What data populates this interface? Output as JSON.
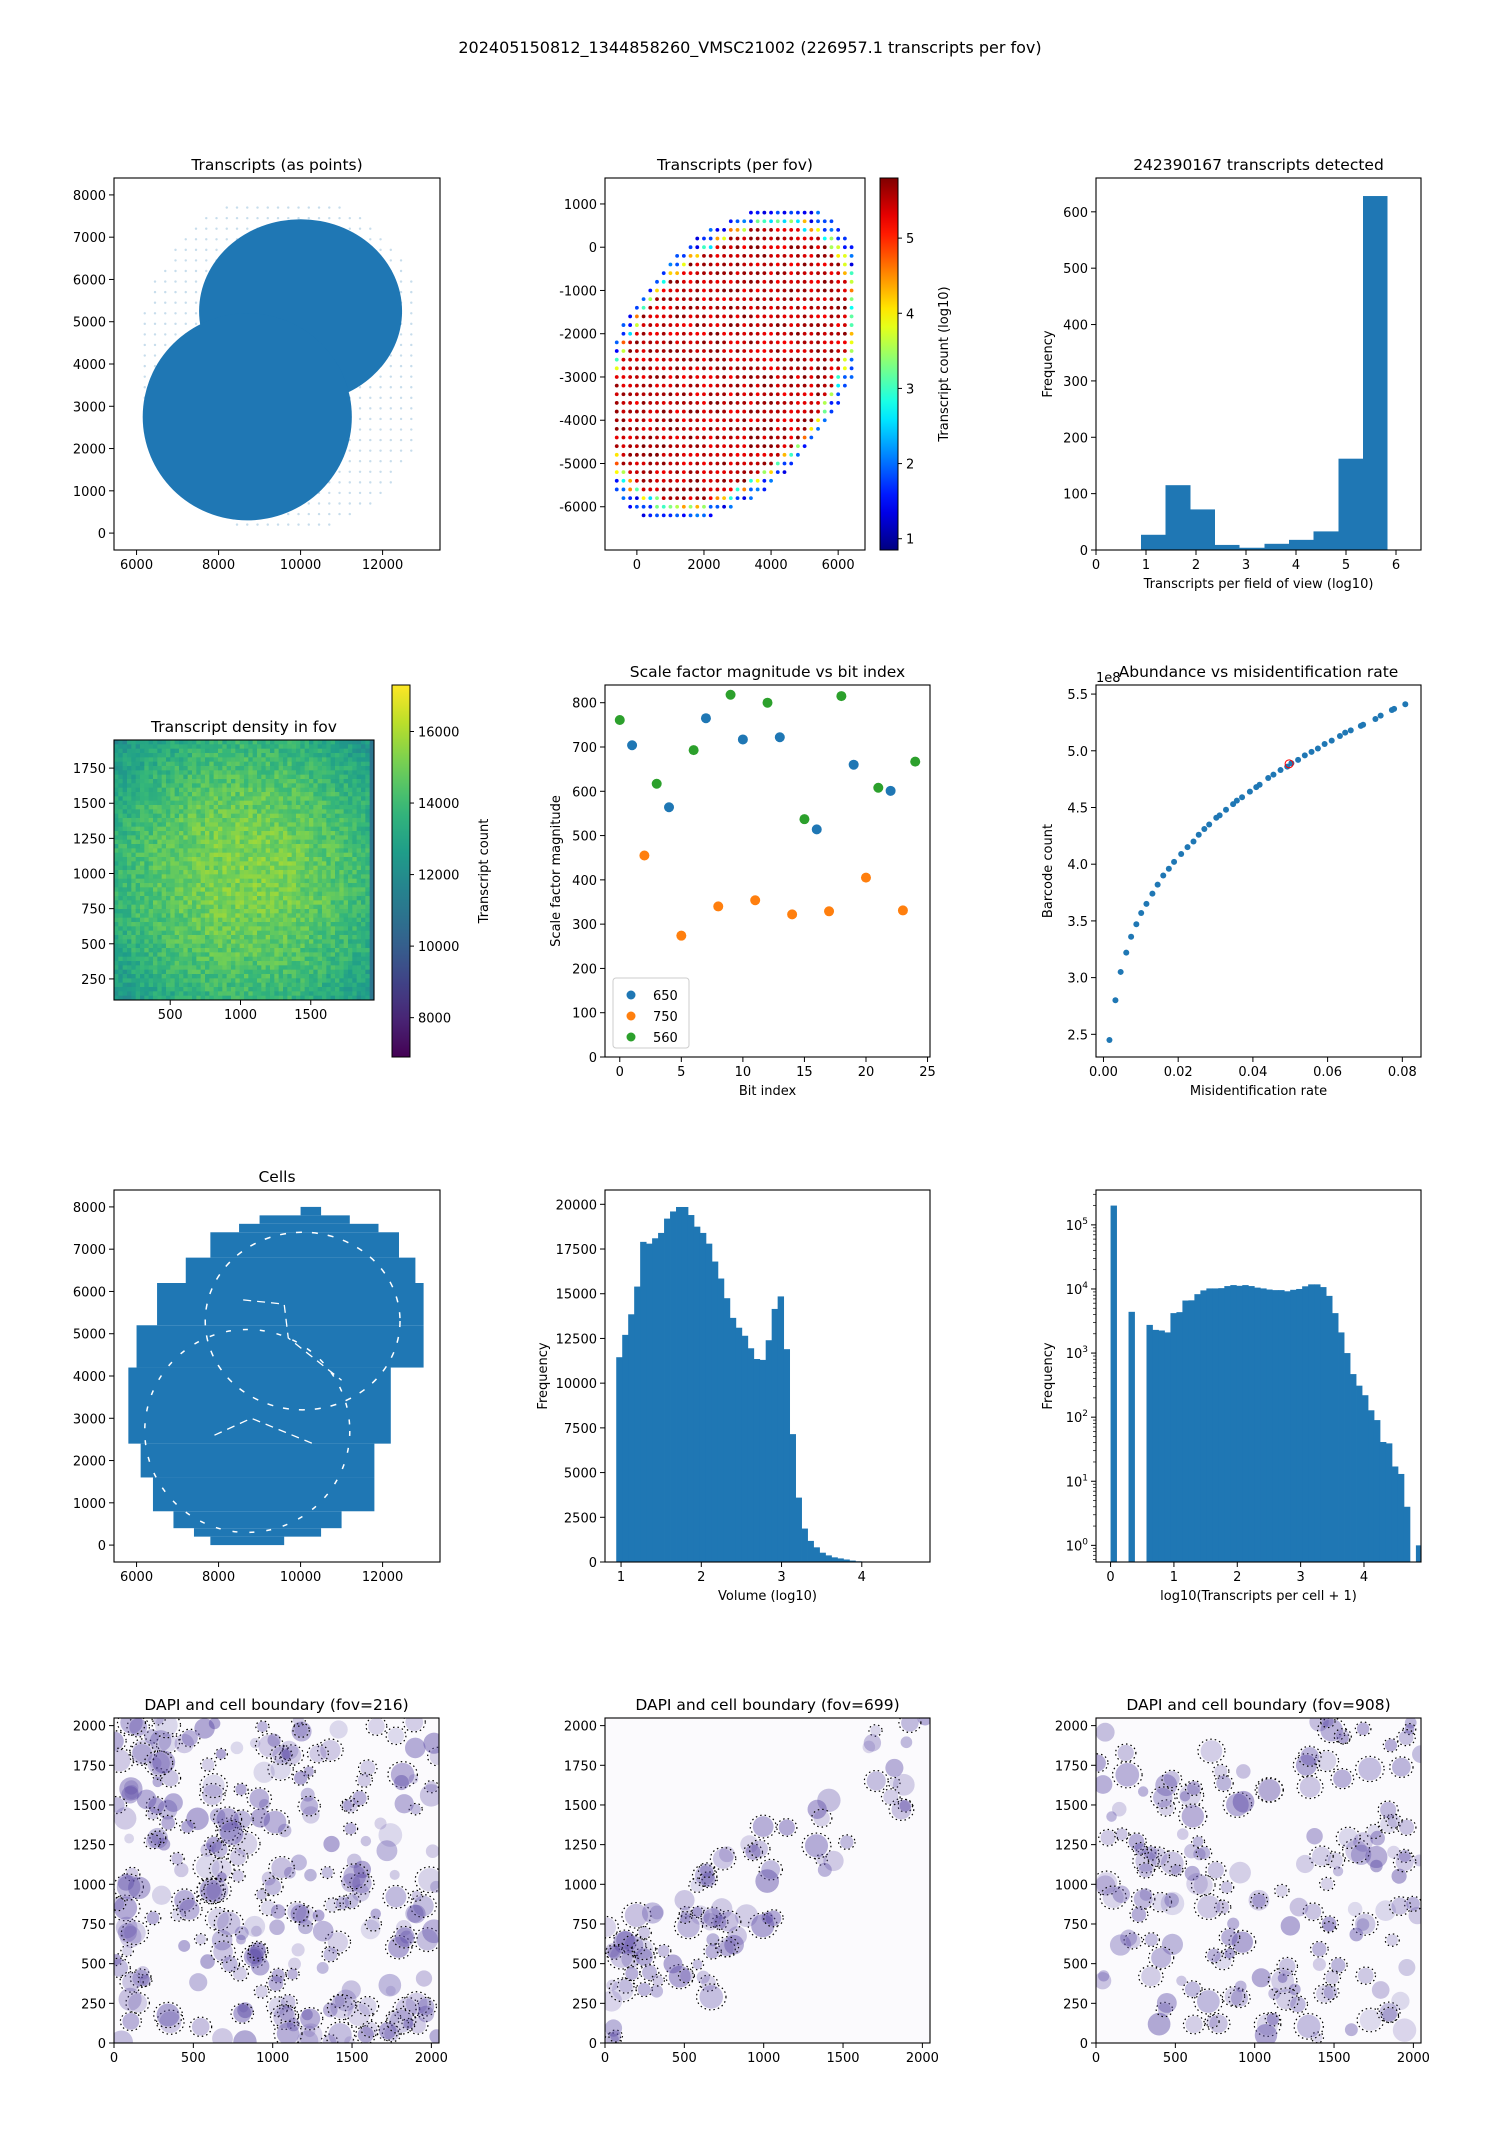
{
  "suptitle": "202405150812_1344858260_VMSC21002 (226957.1 transcripts per fov)",
  "colors": {
    "tab_blue": "#1f77b4",
    "tab_orange": "#ff7f0e",
    "tab_green": "#2ca02c",
    "dapi": "#5b4aa6"
  },
  "chart_data": [
    {
      "id": "transcripts-points",
      "type": "scatter",
      "title": "Transcripts (as points)",
      "xlabel": "",
      "ylabel": "",
      "xlim": [
        5450,
        13400
      ],
      "ylim": [
        -400,
        8400
      ],
      "xticks": [
        6000,
        8000,
        10000,
        12000
      ],
      "yticks": [
        0,
        1000,
        2000,
        3000,
        4000,
        5000,
        6000,
        7000,
        8000
      ],
      "description": "Dense blue point cloud forming two overlapping roughly circular tissue sections with faint grid of sparse points around edges",
      "color": "#1f77b4"
    },
    {
      "id": "transcripts-per-fov",
      "type": "scatter",
      "title": "Transcripts (per fov)",
      "xlim": [
        -950,
        6800
      ],
      "ylim": [
        -7000,
        1600
      ],
      "xticks": [
        0,
        2000,
        4000,
        6000
      ],
      "yticks": [
        -6000,
        -5000,
        -4000,
        -3000,
        -2000,
        -1000,
        0,
        1000
      ],
      "grid_spacing": 200,
      "colorbar": {
        "label": "Transcript count (log10)",
        "cmap": "jet",
        "range": [
          0.85,
          5.8
        ],
        "ticks": [
          1,
          2,
          3,
          4,
          5
        ]
      },
      "description": "Grid of fov centers colored by log10 transcript count; interior ~5.5 (red), boundary ~1.5-2 (blue)"
    },
    {
      "id": "transcripts-per-fov-hist",
      "type": "bar",
      "title": "242390167 transcripts detected",
      "xlabel": "Transcripts per field of view (log10)",
      "ylabel": "Frequency",
      "xlim": [
        0,
        6.5
      ],
      "ylim": [
        0,
        660
      ],
      "xticks": [
        0,
        1,
        2,
        3,
        4,
        5,
        6
      ],
      "yticks": [
        0,
        100,
        200,
        300,
        400,
        500,
        600
      ],
      "bin_edges": [
        0.9,
        1.39,
        1.89,
        2.38,
        2.87,
        3.37,
        3.86,
        4.35,
        4.85,
        5.34,
        5.83
      ],
      "values": [
        27,
        115,
        72,
        9,
        4,
        11,
        18,
        33,
        162,
        628
      ]
    },
    {
      "id": "transcript-density",
      "type": "heatmap",
      "title": "Transcript density in fov",
      "xlim": [
        100,
        1950
      ],
      "ylim": [
        100,
        1950
      ],
      "xticks": [
        500,
        1000,
        1500
      ],
      "yticks": [
        250,
        500,
        750,
        1000,
        1250,
        1500,
        1750
      ],
      "colorbar": {
        "label": "Transcript count",
        "cmap": "viridis",
        "range": [
          6900,
          17300
        ],
        "ticks": [
          8000,
          10000,
          12000,
          14000,
          16000
        ]
      },
      "description": "Mostly 13000-16500 counts, brighter near center, darker at edges"
    },
    {
      "id": "scale-factor",
      "type": "scatter",
      "title": "Scale factor magnitude vs bit index",
      "xlabel": "Bit index",
      "ylabel": "Scale factor magnitude",
      "xlim": [
        -1.2,
        25.2
      ],
      "ylim": [
        0,
        840
      ],
      "xticks": [
        0,
        5,
        10,
        15,
        20,
        25
      ],
      "yticks": [
        0,
        100,
        200,
        300,
        400,
        500,
        600,
        700,
        800
      ],
      "legend": "lower-left",
      "series": [
        {
          "name": "650",
          "color": "#1f77b4",
          "x": [
            1,
            4,
            7,
            10,
            13,
            16,
            19,
            22
          ],
          "y": [
            704,
            564,
            765,
            717,
            722,
            514,
            660,
            601
          ]
        },
        {
          "name": "750",
          "color": "#ff7f0e",
          "x": [
            2,
            5,
            8,
            11,
            14,
            17,
            20,
            23
          ],
          "y": [
            455,
            274,
            340,
            354,
            322,
            329,
            405,
            331
          ]
        },
        {
          "name": "560",
          "color": "#2ca02c",
          "x": [
            0,
            3,
            6,
            9,
            12,
            15,
            18,
            21,
            24
          ],
          "y": [
            761,
            617,
            693,
            818,
            800,
            537,
            815,
            608,
            667
          ]
        }
      ]
    },
    {
      "id": "abundance-vs-misid",
      "type": "scatter",
      "title": "Abundance vs misidentification rate",
      "xlabel": "Misidentification rate",
      "ylabel": "Barcode count",
      "offset_text": "1e8",
      "xlim": [
        -0.002,
        0.085
      ],
      "ylim": [
        2.3,
        5.58
      ],
      "xticks": [
        0.0,
        0.02,
        0.04,
        0.06,
        0.08
      ],
      "xticklabels": [
        "0.00",
        "0.02",
        "0.04",
        "0.06",
        "0.08"
      ],
      "yticks": [
        2.5,
        3.0,
        3.5,
        4.0,
        4.5,
        5.0,
        5.5
      ],
      "yticklabels": [
        "2.5",
        "3.0",
        "3.5",
        "4.0",
        "4.5",
        "5.0",
        "5.5"
      ],
      "highlight": {
        "x": 0.0497,
        "y": 4.885,
        "color": "#ff0000"
      },
      "x": [
        0.0016,
        0.0032,
        0.0046,
        0.0061,
        0.0074,
        0.0088,
        0.0101,
        0.0115,
        0.0131,
        0.0145,
        0.016,
        0.0175,
        0.0189,
        0.0208,
        0.0225,
        0.0241,
        0.0255,
        0.027,
        0.0283,
        0.0302,
        0.0311,
        0.0328,
        0.0347,
        0.0357,
        0.0371,
        0.0392,
        0.0409,
        0.0418,
        0.0441,
        0.0455,
        0.0474,
        0.0492,
        0.0503,
        0.0521,
        0.0539,
        0.0557,
        0.0574,
        0.0592,
        0.0611,
        0.0633,
        0.0647,
        0.0662,
        0.0689,
        0.0695,
        0.0728,
        0.0742,
        0.0772,
        0.0778,
        0.0808
      ],
      "y": [
        2.45,
        2.8,
        3.05,
        3.22,
        3.36,
        3.47,
        3.57,
        3.65,
        3.74,
        3.82,
        3.9,
        3.96,
        4.02,
        4.09,
        4.15,
        4.2,
        4.26,
        4.31,
        4.35,
        4.41,
        4.43,
        4.48,
        4.53,
        4.56,
        4.59,
        4.64,
        4.68,
        4.7,
        4.76,
        4.79,
        4.83,
        4.86,
        4.89,
        4.92,
        4.96,
        4.99,
        5.02,
        5.06,
        5.09,
        5.13,
        5.16,
        5.18,
        5.22,
        5.23,
        5.28,
        5.31,
        5.36,
        5.37,
        5.41
      ]
    },
    {
      "id": "cells",
      "type": "scatter",
      "title": "Cells",
      "xlim": [
        5450,
        13400
      ],
      "ylim": [
        -400,
        8400
      ],
      "xticks": [
        6000,
        8000,
        10000,
        12000
      ],
      "yticks": [
        0,
        1000,
        2000,
        3000,
        4000,
        5000,
        6000,
        7000,
        8000
      ],
      "description": "Cell centroids in blue covering stepped fov-grid footprint of two overlapping tissue sections with white gaps at section boundaries",
      "color": "#1f77b4"
    },
    {
      "id": "volume-hist",
      "type": "bar",
      "title": "",
      "xlabel": "Volume (log10)",
      "ylabel": "Frequency",
      "xlim": [
        0.8,
        4.85
      ],
      "ylim": [
        0,
        20800
      ],
      "xticks": [
        1,
        2,
        3,
        4
      ],
      "yticks": [
        0,
        2500,
        5000,
        7500,
        10000,
        12500,
        15000,
        17500,
        20000
      ],
      "bin_start": 0.94,
      "bin_width": 0.0745,
      "values": [
        11450,
        12700,
        13850,
        15400,
        17900,
        17800,
        18100,
        18400,
        19200,
        19600,
        19850,
        19850,
        19400,
        18750,
        18400,
        17800,
        16800,
        15850,
        14750,
        13650,
        13100,
        12650,
        11950,
        11350,
        11300,
        12400,
        14150,
        14850,
        11900,
        7150,
        3600,
        1870,
        1180,
        820,
        520,
        370,
        260,
        200,
        140,
        80,
        40,
        20,
        10,
        6,
        4,
        2,
        1,
        1,
        0,
        0,
        0,
        0,
        0,
        0,
        0
      ]
    },
    {
      "id": "transcripts-per-cell-hist",
      "type": "bar",
      "title": "",
      "xlabel": "log10(Transcripts per cell + 1)",
      "ylabel": "Frequency",
      "yscale": "log",
      "xlim": [
        -0.23,
        4.9
      ],
      "ylim": [
        0.55,
        350000
      ],
      "xticks": [
        0,
        1,
        2,
        3,
        4
      ],
      "yticks": [
        1,
        10,
        100,
        1000,
        10000,
        100000
      ],
      "yticklabels": [
        "10^0",
        "10^1",
        "10^2",
        "10^3",
        "10^4",
        "10^5"
      ],
      "bin_start": 0.0,
      "bin_width": 0.0945,
      "values": [
        200000,
        0,
        0,
        4400,
        0,
        0,
        2750,
        2300,
        2250,
        2100,
        4200,
        4350,
        6600,
        6650,
        8300,
        9500,
        10200,
        10200,
        10300,
        11100,
        11500,
        11200,
        11500,
        11100,
        10500,
        10200,
        9800,
        9600,
        9600,
        9200,
        9700,
        10000,
        11000,
        11800,
        11800,
        10700,
        7800,
        4200,
        2100,
        1000,
        470,
        310,
        220,
        128,
        90,
        41,
        39,
        17,
        13,
        4,
        0,
        1
      ]
    },
    {
      "id": "dapi-fov-216",
      "type": "heatmap",
      "title": "DAPI and cell boundary (fov=216)",
      "xlim": [
        0,
        2048
      ],
      "ylim": [
        0,
        2048
      ],
      "xticks": [
        0,
        500,
        1000,
        1500,
        2000
      ],
      "yticks": [
        0,
        250,
        500,
        750,
        1000,
        1250,
        1500,
        1750,
        2000
      ],
      "cmap": "Purples",
      "description": "Dense DAPI-stained nuclei with many black dotted cell boundaries"
    },
    {
      "id": "dapi-fov-699",
      "type": "heatmap",
      "title": "DAPI and cell boundary (fov=699)",
      "xlim": [
        0,
        2048
      ],
      "ylim": [
        0,
        2048
      ],
      "xticks": [
        0,
        500,
        1000,
        1500,
        2000
      ],
      "yticks": [
        0,
        250,
        500,
        750,
        1000,
        1250,
        1500,
        1750,
        2000
      ],
      "cmap": "Purples",
      "description": "Sparse nuclei along a diagonal band, cluster lower-left, dotted cell boundaries"
    },
    {
      "id": "dapi-fov-908",
      "type": "heatmap",
      "title": "DAPI and cell boundary (fov=908)",
      "xlim": [
        0,
        2048
      ],
      "ylim": [
        0,
        2048
      ],
      "xticks": [
        0,
        500,
        1000,
        1500,
        2000
      ],
      "yticks": [
        0,
        250,
        500,
        750,
        1000,
        1250,
        1500,
        1750,
        2000
      ],
      "cmap": "Purples",
      "description": "Moderately dense scattered nuclei with dotted cell boundaries"
    }
  ]
}
